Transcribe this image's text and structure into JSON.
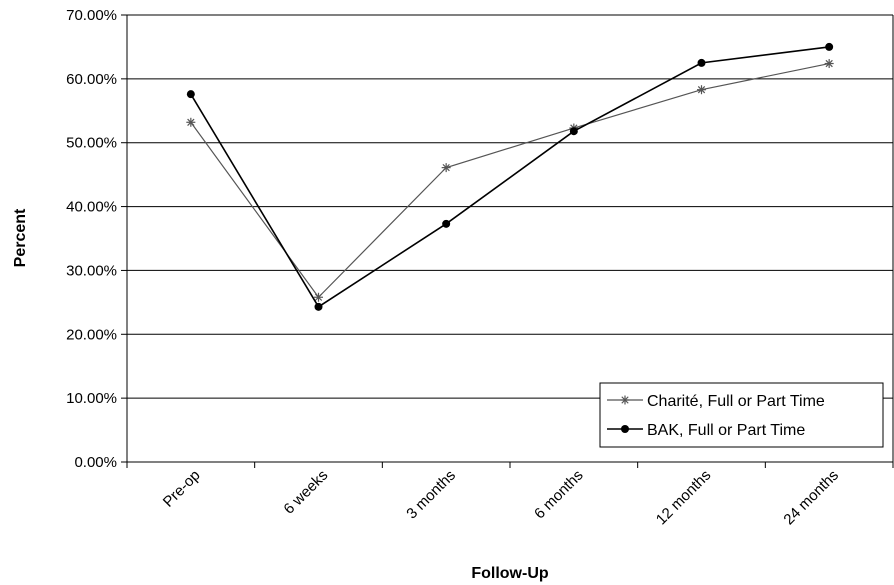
{
  "chart_data": {
    "type": "line",
    "title": "",
    "xlabel": "Follow-Up",
    "ylabel": "Percent",
    "categories": [
      "Pre-op",
      "6 weeks",
      "3 months",
      "6 months",
      "12 months",
      "24 months"
    ],
    "ylim": [
      0,
      70
    ],
    "yticks": [
      0,
      10,
      20,
      30,
      40,
      50,
      60,
      70
    ],
    "ytick_labels": [
      "0.00%",
      "10.00%",
      "20.00%",
      "30.00%",
      "40.00%",
      "50.00%",
      "60.00%",
      "70.00%"
    ],
    "grid": true,
    "legend_position": "lower-right",
    "series": [
      {
        "name": "Charité, Full or Part Time",
        "marker": "asterisk",
        "color": "#555555",
        "values": [
          53.2,
          25.8,
          46.1,
          52.3,
          58.3,
          62.4
        ]
      },
      {
        "name": "BAK, Full or Part Time",
        "marker": "circle",
        "color": "#000000",
        "values": [
          57.6,
          24.3,
          37.3,
          51.8,
          62.5,
          65.0
        ]
      }
    ]
  }
}
